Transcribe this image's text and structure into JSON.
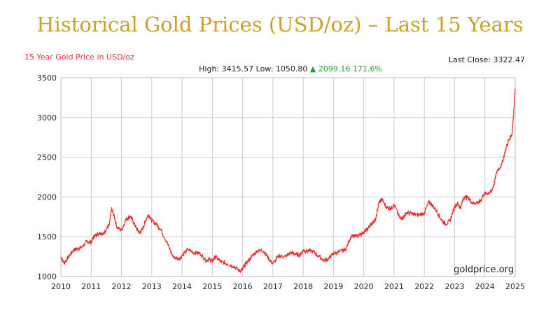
{
  "page": {
    "title": "Historical Gold Prices (USD/oz) – Last 15 Years"
  },
  "header": {
    "subtitle": "15 Year Gold Price in USD/oz",
    "last_close_label": "Last Close:",
    "last_close_value": "3322.47",
    "high_label": "High:",
    "high_value": "3415.57",
    "low_label": "Low:",
    "low_value": "1050.80",
    "change_arrow": "▲",
    "change_value": "2099.16",
    "change_pct": "171.6%"
  },
  "watermark": "goldprice.org",
  "colors": {
    "line": "#e8302e",
    "title": "#c9a227",
    "up": "#2a9a2a",
    "grid": "#cccccc"
  },
  "chart_data": {
    "type": "line",
    "title": "15 Year Gold Price in USD/oz",
    "xlabel": "",
    "ylabel": "",
    "xlim": [
      2010,
      2025
    ],
    "ylim": [
      1000,
      3500
    ],
    "grid": true,
    "x_ticks": [
      2010,
      2011,
      2012,
      2013,
      2014,
      2015,
      2016,
      2017,
      2018,
      2019,
      2020,
      2021,
      2022,
      2023,
      2024,
      2025
    ],
    "y_ticks": [
      1000,
      1500,
      2000,
      2500,
      3000,
      3500
    ],
    "series": [
      {
        "name": "",
        "color": "#e8302e",
        "x": [
          2010.0,
          2010.1,
          2010.25,
          2010.4,
          2010.55,
          2010.7,
          2010.85,
          2011.0,
          2011.1,
          2011.2,
          2011.3,
          2011.4,
          2011.5,
          2011.6,
          2011.67,
          2011.75,
          2011.85,
          2012.0,
          2012.15,
          2012.3,
          2012.4,
          2012.5,
          2012.6,
          2012.7,
          2012.8,
          2012.9,
          2013.0,
          2013.15,
          2013.3,
          2013.5,
          2013.7,
          2013.9,
          2014.0,
          2014.2,
          2014.4,
          2014.6,
          2014.8,
          2014.9,
          2015.0,
          2015.1,
          2015.3,
          2015.5,
          2015.7,
          2015.9,
          2016.0,
          2016.1,
          2016.3,
          2016.5,
          2016.7,
          2016.85,
          2017.0,
          2017.2,
          2017.4,
          2017.6,
          2017.75,
          2017.9,
          2018.0,
          2018.1,
          2018.3,
          2018.5,
          2018.7,
          2018.85,
          2019.0,
          2019.2,
          2019.4,
          2019.6,
          2019.8,
          2020.0,
          2020.1,
          2020.2,
          2020.3,
          2020.4,
          2020.5,
          2020.6,
          2020.75,
          2020.9,
          2021.0,
          2021.2,
          2021.3,
          2021.4,
          2021.6,
          2021.8,
          2022.0,
          2022.15,
          2022.25,
          2022.4,
          2022.55,
          2022.7,
          2022.85,
          2023.0,
          2023.1,
          2023.2,
          2023.3,
          2023.45,
          2023.6,
          2023.75,
          2023.85,
          2023.95,
          2024.1,
          2024.2,
          2024.3,
          2024.4,
          2024.55,
          2024.7,
          2024.8,
          2024.9,
          2025.0
        ],
        "y": [
          1250,
          1170,
          1240,
          1330,
          1350,
          1370,
          1440,
          1430,
          1510,
          1530,
          1550,
          1530,
          1600,
          1650,
          1850,
          1770,
          1620,
          1580,
          1720,
          1760,
          1680,
          1600,
          1550,
          1600,
          1710,
          1780,
          1700,
          1660,
          1590,
          1430,
          1250,
          1220,
          1260,
          1340,
          1300,
          1290,
          1200,
          1220,
          1190,
          1250,
          1180,
          1160,
          1130,
          1070,
          1090,
          1160,
          1250,
          1330,
          1320,
          1230,
          1160,
          1260,
          1250,
          1300,
          1280,
          1270,
          1330,
          1320,
          1320,
          1260,
          1200,
          1230,
          1290,
          1310,
          1340,
          1520,
          1500,
          1560,
          1580,
          1640,
          1680,
          1720,
          1930,
          1970,
          1870,
          1860,
          1900,
          1730,
          1740,
          1800,
          1790,
          1770,
          1800,
          1940,
          1900,
          1830,
          1720,
          1660,
          1700,
          1880,
          1920,
          1860,
          2000,
          1990,
          1920,
          1930,
          1940,
          2030,
          2050,
          2060,
          2160,
          2330,
          2400,
          2620,
          2720,
          2800,
          3360
        ]
      }
    ]
  }
}
